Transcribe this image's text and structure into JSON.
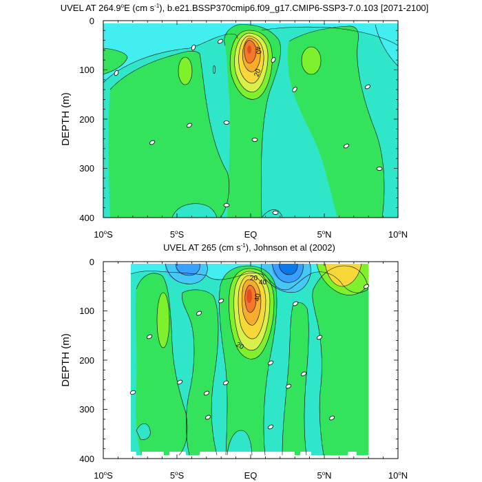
{
  "colors": {
    "c_neg4": "#0a78e6",
    "c_neg3": "#3aa0ff",
    "c_neg2": "#46c8f5",
    "c_neg1": "#42eef0",
    "c0": "#30e6c8",
    "c10": "#33e35c",
    "c20": "#7ef02c",
    "c30": "#d8f04a",
    "c40": "#f8d838",
    "c50": "#f6ac2c",
    "c60": "#f07a2a",
    "c70": "#e34d1e"
  },
  "chart_data": [
    {
      "type": "contour",
      "title_main": "UVEL AT 264.9",
      "title_deg": "o",
      "title_e": "E (cm s",
      "title_sup": "-1",
      "title_rest": "), b.e21.BSSP370cmip6.f09_g17.CMIP6-SSP3-7.0.103 [2071-2100]",
      "ylabel": "DEPTH (m)",
      "xlim": [
        -10,
        10
      ],
      "ylim": [
        400,
        0
      ],
      "x_ticks": [
        {
          "value": -10,
          "num": "10",
          "deg": "o",
          "hem": "S"
        },
        {
          "value": -5,
          "num": "5",
          "deg": "o",
          "hem": "S"
        },
        {
          "value": 0,
          "num": "EQ",
          "deg": "",
          "hem": ""
        },
        {
          "value": 5,
          "num": "5",
          "deg": "o",
          "hem": "N"
        },
        {
          "value": 10,
          "num": "10",
          "deg": "o",
          "hem": "N"
        }
      ],
      "y_ticks": [
        "0",
        "100",
        "200",
        "300",
        "400"
      ],
      "y_tick_values": [
        0,
        100,
        200,
        300,
        400
      ],
      "contour_labels": [
        {
          "text": "40",
          "lat": 0.4,
          "depth": 47
        },
        {
          "text": "20",
          "lat": 0.65,
          "depth": 108
        }
      ],
      "core_max_cm_s": 70,
      "core_lat": 0,
      "core_depth_m": 60
    },
    {
      "type": "contour",
      "title_main": "UVEL AT 265 (cm s",
      "title_sup": "-1",
      "title_rest": "), Johnson et al (2002)",
      "ylabel": "DEPTH (m)",
      "xlim": [
        -10,
        10
      ],
      "ylim": [
        400,
        0
      ],
      "x_ticks": [
        {
          "value": -10,
          "num": "10",
          "deg": "o",
          "hem": "S"
        },
        {
          "value": -5,
          "num": "5",
          "deg": "o",
          "hem": "S"
        },
        {
          "value": 0,
          "num": "EQ",
          "deg": "",
          "hem": ""
        },
        {
          "value": 5,
          "num": "5",
          "deg": "o",
          "hem": "N"
        },
        {
          "value": 10,
          "num": "10",
          "deg": "o",
          "hem": "N"
        }
      ],
      "y_ticks": [
        "0",
        "100",
        "200",
        "300",
        "400"
      ],
      "y_tick_values": [
        0,
        100,
        200,
        300,
        400
      ],
      "contour_labels": [
        {
          "text": "20",
          "lat": 0.2,
          "depth": 32
        },
        {
          "text": "40",
          "lat": 0.8,
          "depth": 42
        },
        {
          "text": "40",
          "lat": 0.5,
          "depth": 82
        },
        {
          "text": "20",
          "lat": -0.8,
          "depth": 172
        }
      ],
      "core_max_cm_s": 70,
      "core_lat": 0,
      "core_depth_m": 65,
      "data_lat_range": [
        -8.1,
        8.1
      ]
    }
  ]
}
